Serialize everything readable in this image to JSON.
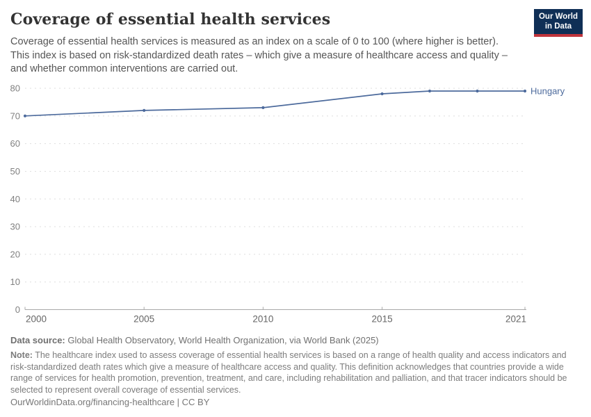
{
  "header": {
    "title": "Coverage of essential health services",
    "subtitle_lines": [
      "Coverage of essential health services is measured as an index on a scale of 0 to 100 (where higher is better).",
      "This index is based on risk-standardized death rates – which give a measure of healthcare access and quality –",
      "and whether common interventions are carried out."
    ],
    "logo": {
      "line1": "Our World",
      "line2": "in Data"
    }
  },
  "chart_data": {
    "type": "line",
    "title": "Coverage of essential health services",
    "xlabel": "",
    "ylabel": "",
    "x": {
      "min": 2000,
      "max": 2021,
      "ticks": [
        2000,
        2005,
        2010,
        2015,
        2021
      ]
    },
    "y": {
      "min": 0,
      "max": 80,
      "ticks": [
        0,
        10,
        20,
        30,
        40,
        50,
        60,
        70,
        80
      ],
      "grid": "dashed"
    },
    "series": [
      {
        "name": "Hungary",
        "color": "#4c6a9c",
        "points": [
          [
            2000,
            70
          ],
          [
            2005,
            72
          ],
          [
            2010,
            73
          ],
          [
            2015,
            78
          ],
          [
            2017,
            79
          ],
          [
            2019,
            79
          ],
          [
            2021,
            79
          ]
        ]
      }
    ],
    "legend_position": "end-of-line"
  },
  "footer": {
    "data_source_label": "Data source:",
    "data_source_text": "Global Health Observatory, World Health Organization, via World Bank (2025)",
    "note_label": "Note:",
    "note_text": "The healthcare index used to assess coverage of essential health services is based on a range of health quality and access indicators and risk-standardized death rates which give a measure of healthcare access and quality. This definition acknowledges that countries provide a wide range of services for health promotion, prevention, treatment, and care, including rehabilitation and palliation, and that tracer indicators should be selected to represent overall coverage of essential services.",
    "link_text": "OurWorldinData.org/financing-healthcare | CC BY"
  },
  "colors": {
    "line": "#4c6a9c",
    "grid": "#dedede",
    "axis": "#a8a8a8",
    "tick_label": "#6e6e6e",
    "logo_navy": "#0f2f56",
    "logo_red": "#c0343c"
  }
}
